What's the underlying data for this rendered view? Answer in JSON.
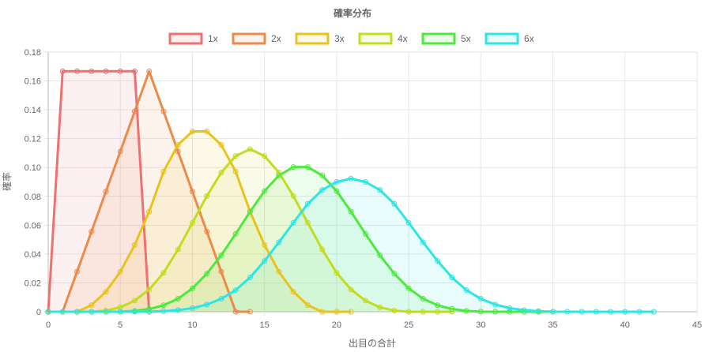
{
  "chart_data": {
    "type": "line",
    "title": "確率分布",
    "xlabel": "出目の合計",
    "ylabel": "確率",
    "xlim": [
      0,
      45
    ],
    "ylim": [
      0,
      0.18
    ],
    "x_ticks": [
      "0",
      "5",
      "10",
      "15",
      "20",
      "25",
      "30",
      "35",
      "40",
      "45"
    ],
    "y_ticks": [
      "0",
      "0.02",
      "0.04",
      "0.06",
      "0.08",
      "0.10",
      "0.12",
      "0.14",
      "0.16",
      "0.18"
    ],
    "grid": true,
    "legend": "top",
    "series": [
      {
        "name": "1x",
        "color": "#f07070",
        "fill": "rgba(240,112,112,0.10)",
        "x": [
          0,
          1,
          2,
          3,
          4,
          5,
          6,
          7
        ],
        "y": [
          0,
          0.1667,
          0.1667,
          0.1667,
          0.1667,
          0.1667,
          0.1667,
          0
        ]
      },
      {
        "name": "2x",
        "color": "#ed8a4a",
        "fill": "rgba(237,138,74,0.10)",
        "x": [
          0,
          1,
          2,
          3,
          4,
          5,
          6,
          7,
          8,
          9,
          10,
          11,
          12,
          13,
          14
        ],
        "y": [
          0,
          0,
          0.0278,
          0.0556,
          0.0833,
          0.1111,
          0.1389,
          0.1667,
          0.1389,
          0.1111,
          0.0833,
          0.0556,
          0.0278,
          0,
          0
        ]
      },
      {
        "name": "3x",
        "color": "#e8c31e",
        "fill": "rgba(232,195,30,0.10)",
        "x": [
          0,
          1,
          2,
          3,
          4,
          5,
          6,
          7,
          8,
          9,
          10,
          11,
          12,
          13,
          14,
          15,
          16,
          17,
          18,
          19,
          20,
          21
        ],
        "y": [
          0,
          0,
          0,
          0.0046,
          0.0139,
          0.0278,
          0.0463,
          0.0694,
          0.0972,
          0.1157,
          0.125,
          0.125,
          0.1157,
          0.0972,
          0.0694,
          0.0463,
          0.0278,
          0.0139,
          0.0046,
          0,
          0,
          0
        ]
      },
      {
        "name": "4x",
        "color": "#c2dc1e",
        "fill": "rgba(194,220,30,0.10)",
        "x": [
          0,
          1,
          2,
          3,
          4,
          5,
          6,
          7,
          8,
          9,
          10,
          11,
          12,
          13,
          14,
          15,
          16,
          17,
          18,
          19,
          20,
          21,
          22,
          23,
          24,
          25,
          26,
          27,
          28
        ],
        "y": [
          0,
          0,
          0,
          0,
          0.0008,
          0.0031,
          0.0077,
          0.0154,
          0.027,
          0.0432,
          0.0617,
          0.0802,
          0.0965,
          0.108,
          0.1127,
          0.108,
          0.0965,
          0.0802,
          0.0617,
          0.0432,
          0.027,
          0.0154,
          0.0077,
          0.0031,
          0.0008,
          0,
          0,
          0,
          0
        ]
      },
      {
        "name": "5x",
        "color": "#4cea3c",
        "fill": "rgba(76,234,60,0.10)",
        "x": [
          0,
          1,
          2,
          3,
          4,
          5,
          6,
          7,
          8,
          9,
          10,
          11,
          12,
          13,
          14,
          15,
          16,
          17,
          18,
          19,
          20,
          21,
          22,
          23,
          24,
          25,
          26,
          27,
          28,
          29,
          30,
          31,
          32,
          33,
          34,
          35
        ],
        "y": [
          0,
          0,
          0,
          0,
          0,
          0.0001,
          0.0006,
          0.0019,
          0.0045,
          0.009,
          0.0162,
          0.0264,
          0.0392,
          0.054,
          0.0694,
          0.0837,
          0.0945,
          0.1003,
          0.1003,
          0.0945,
          0.0837,
          0.0694,
          0.054,
          0.0392,
          0.0264,
          0.0162,
          0.009,
          0.0045,
          0.0019,
          0.0006,
          0.0001,
          0,
          0,
          0,
          0,
          0
        ]
      },
      {
        "name": "6x",
        "color": "#2ce6e6",
        "fill": "rgba(44,230,230,0.10)",
        "x": [
          0,
          1,
          2,
          3,
          4,
          5,
          6,
          7,
          8,
          9,
          10,
          11,
          12,
          13,
          14,
          15,
          16,
          17,
          18,
          19,
          20,
          21,
          22,
          23,
          24,
          25,
          26,
          27,
          28,
          29,
          30,
          31,
          32,
          33,
          34,
          35,
          36,
          37,
          38,
          39,
          40,
          41,
          42
        ],
        "y": [
          0,
          0,
          0,
          0,
          0,
          0,
          2e-05,
          0.0001,
          0.0004,
          0.0011,
          0.0025,
          0.005,
          0.009,
          0.015,
          0.0238,
          0.0352,
          0.0482,
          0.0617,
          0.0748,
          0.0844,
          0.09,
          0.0923,
          0.09,
          0.0844,
          0.0748,
          0.0617,
          0.0482,
          0.0352,
          0.0238,
          0.015,
          0.009,
          0.005,
          0.0025,
          0.0011,
          0.0004,
          0.0001,
          2e-05,
          0,
          0,
          0,
          0,
          0,
          0
        ]
      }
    ]
  }
}
